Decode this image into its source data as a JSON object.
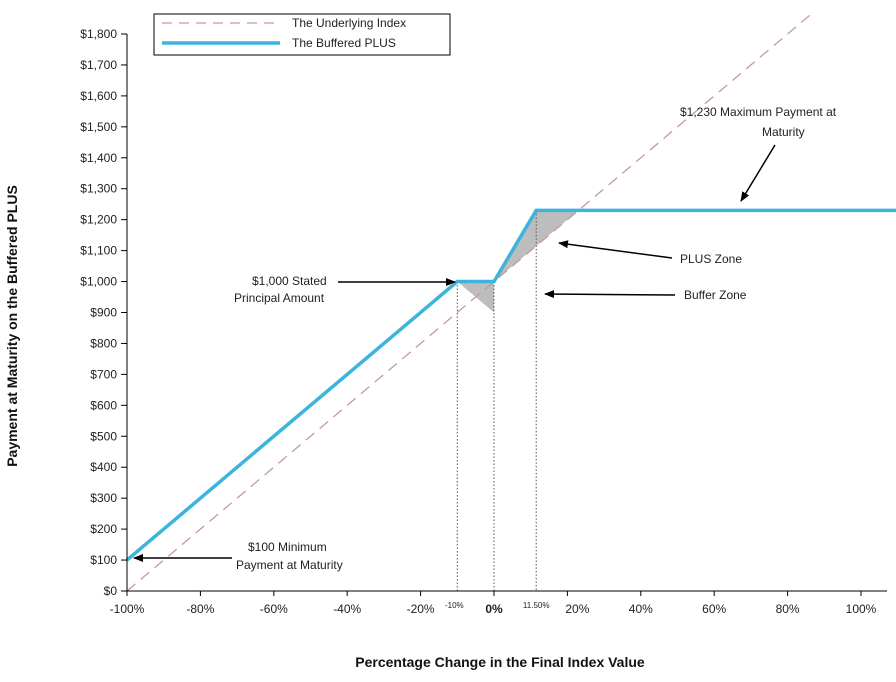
{
  "chart_data": {
    "type": "line",
    "xlabel": "Percentage Change in the Final Index Value",
    "ylabel": "Payment at Maturity on the Buffered PLUS",
    "xlim": [
      -100,
      110
    ],
    "ylim": [
      0,
      1800
    ],
    "x_ticks": [
      -100,
      -80,
      -60,
      -40,
      -20,
      0,
      20,
      40,
      60,
      80,
      100
    ],
    "x_tick_labels": [
      "-100%",
      "-80%",
      "-60%",
      "-40%",
      "-20%",
      "0%",
      "20%",
      "40%",
      "60%",
      "80%",
      "100%"
    ],
    "y_ticks": [
      0,
      100,
      200,
      300,
      400,
      500,
      600,
      700,
      800,
      900,
      1000,
      1100,
      1200,
      1300,
      1400,
      1500,
      1600,
      1700,
      1800
    ],
    "y_tick_labels": [
      "$0",
      "$100",
      "$200",
      "$300",
      "$400",
      "$500",
      "$600",
      "$700",
      "$800",
      "$900",
      "$1,000",
      "$1,100",
      "$1,200",
      "$1,300",
      "$1,400",
      "$1,500",
      "$1,600",
      "$1,700",
      "$1,800"
    ],
    "extra_x_labels": [
      {
        "x": -10,
        "label": "-10%"
      },
      {
        "x": 11.5,
        "label": "11.50%"
      }
    ],
    "series": [
      {
        "name": "The Underlying Index",
        "style": "dashed",
        "color": "#c49a9a",
        "x": [
          -100,
          86
        ],
        "y": [
          0,
          1860
        ]
      },
      {
        "name": "The Buffered PLUS",
        "style": "solid",
        "color": "#3cb4dc",
        "x": [
          -100,
          -10,
          0,
          11.5,
          110
        ],
        "y": [
          100,
          1000,
          1000,
          1230,
          1230
        ]
      }
    ],
    "shaded_regions": [
      {
        "name": "Buffer Zone",
        "x": [
          -10,
          0,
          0
        ],
        "y": [
          1000,
          1000,
          900
        ],
        "color": "#bdbdbd"
      },
      {
        "name": "PLUS Zone",
        "x": [
          0,
          11.5,
          23,
          11.5
        ],
        "y": [
          1000,
          1230,
          1230,
          1115
        ],
        "color": "#bdbdbd"
      }
    ],
    "annotations": [
      {
        "lines": [
          "$1,230 Maximum Payment at",
          "Maturity"
        ]
      },
      {
        "lines": [
          "PLUS Zone"
        ]
      },
      {
        "lines": [
          "Buffer  Zone"
        ]
      },
      {
        "lines": [
          "$1,000 Stated",
          "Principal Amount"
        ]
      },
      {
        "lines": [
          "$100 Minimum",
          "Payment at Maturity"
        ]
      }
    ],
    "legend_position": "top-left",
    "grid": false
  }
}
